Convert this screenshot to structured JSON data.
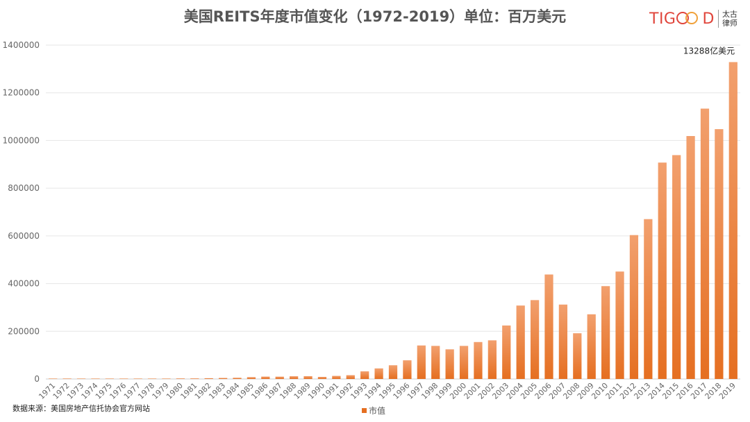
{
  "title": "美国REITS年度市值变化（1972-2019）单位：百万美元",
  "logo": {
    "brand_left": "TIG",
    "brand_right": "D",
    "sub_line1": "太古",
    "sub_line2": "律师"
  },
  "source": "数据来源：美国房地产信托协会官方网站",
  "colors": {
    "bar_top": "#f2a06e",
    "bar_bottom": "#e56f21",
    "grid": "#e6e6e6",
    "axis": "#cccccc",
    "tick": "#666666"
  },
  "chart_data": {
    "type": "bar",
    "title": "美国REITS年度市值变化（1972-2019）单位：百万美元",
    "xlabel": "",
    "ylabel": "",
    "ylim": [
      0,
      1400000
    ],
    "yticks": [
      "0",
      "200000",
      "400000",
      "600000",
      "800000",
      "1000000",
      "1200000",
      "1400000"
    ],
    "grid": true,
    "legend": "bottom-center",
    "categories": [
      "1971",
      "1972",
      "1973",
      "1974",
      "1975",
      "1976",
      "1977",
      "1978",
      "1979",
      "1980",
      "1981",
      "1982",
      "1983",
      "1984",
      "1985",
      "1986",
      "1987",
      "1988",
      "1989",
      "1990",
      "1991",
      "1992",
      "1993",
      "1994",
      "1995",
      "1996",
      "1997",
      "1998",
      "1999",
      "2000",
      "2001",
      "2002",
      "2003",
      "2004",
      "2005",
      "2006",
      "2007",
      "2008",
      "2009",
      "2010",
      "2011",
      "2012",
      "2013",
      "2014",
      "2015",
      "2016",
      "2017",
      "2018",
      "2019"
    ],
    "series": [
      {
        "name": "市值",
        "values": [
          1500,
          1900,
          1400,
          700,
          900,
          1300,
          1600,
          1400,
          1800,
          2300,
          2400,
          3300,
          4300,
          5100,
          7700,
          9900,
          9700,
          11400,
          11700,
          8700,
          12900,
          15900,
          32000,
          44300,
          57500,
          78300,
          140500,
          138700,
          124300,
          138700,
          154900,
          162000,
          224200,
          307900,
          330700,
          438100,
          312000,
          191700,
          271200,
          389300,
          450500,
          603400,
          670300,
          907400,
          938700,
          1018700,
          1133700,
          1047600,
          1328800
        ]
      }
    ],
    "annotations": [
      {
        "category": "2019",
        "text": "13288亿美元"
      }
    ]
  }
}
